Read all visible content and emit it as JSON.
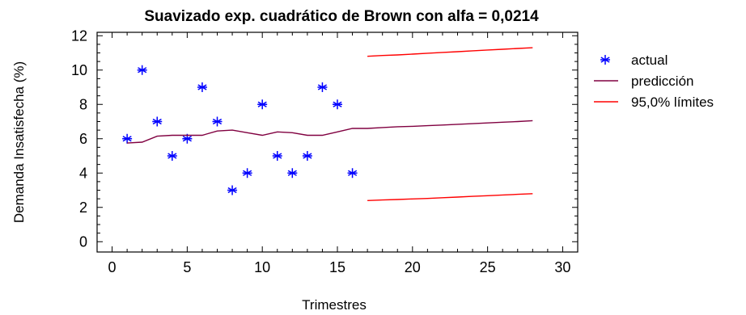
{
  "chart_data": {
    "type": "line",
    "title": "Suavizado exp. cuadrático de Brown con alfa = 0,0214",
    "xlabel": "Trimestres",
    "ylabel": "Demanda Insatisfecha (%)",
    "xlim": [
      -1,
      31
    ],
    "ylim": [
      -0.6,
      12.2
    ],
    "x_ticks": [
      0,
      5,
      10,
      15,
      20,
      25,
      30
    ],
    "y_ticks": [
      0,
      2,
      4,
      6,
      8,
      10,
      12
    ],
    "x_tick_labels": [
      "0",
      "5",
      "10",
      "15",
      "20",
      "25",
      "30"
    ],
    "y_tick_labels": [
      "0",
      "2",
      "4",
      "6",
      "8",
      "10",
      "12"
    ],
    "grid": false,
    "legend_position": "right",
    "series": [
      {
        "name": "actual",
        "style": "markers",
        "marker": "asterisk",
        "color": "#0000ff",
        "x": [
          1,
          2,
          3,
          4,
          5,
          6,
          7,
          8,
          9,
          10,
          11,
          12,
          13,
          14,
          15,
          16
        ],
        "y": [
          6,
          10,
          7,
          5,
          6,
          9,
          7,
          3,
          4,
          8,
          5,
          4,
          5,
          9,
          8,
          4
        ]
      },
      {
        "name": "predicción",
        "style": "line",
        "color": "#800040",
        "x": [
          1,
          2,
          3,
          4,
          5,
          6,
          7,
          8,
          9,
          10,
          11,
          12,
          13,
          14,
          15,
          16,
          17,
          18,
          19,
          20,
          21,
          22,
          23,
          24,
          25,
          26,
          27,
          28
        ],
        "y": [
          5.75,
          5.8,
          6.15,
          6.2,
          6.2,
          6.2,
          6.45,
          6.5,
          6.35,
          6.2,
          6.4,
          6.35,
          6.2,
          6.2,
          6.4,
          6.6,
          6.6,
          6.65,
          6.7,
          6.72,
          6.76,
          6.8,
          6.84,
          6.88,
          6.92,
          6.96,
          7.0,
          7.05
        ]
      },
      {
        "name": "95,0% límites",
        "style": "line",
        "color": "#ff0000",
        "upper": {
          "x": [
            17,
            18,
            19,
            20,
            21,
            22,
            23,
            24,
            25,
            26,
            27,
            28
          ],
          "y": [
            10.8,
            10.85,
            10.88,
            10.93,
            10.98,
            11.03,
            11.07,
            11.12,
            11.17,
            11.21,
            11.26,
            11.3
          ]
        },
        "lower": {
          "x": [
            17,
            18,
            19,
            20,
            21,
            22,
            23,
            24,
            25,
            26,
            27,
            28
          ],
          "y": [
            2.4,
            2.43,
            2.46,
            2.49,
            2.52,
            2.56,
            2.6,
            2.64,
            2.68,
            2.72,
            2.76,
            2.8
          ]
        }
      }
    ]
  }
}
